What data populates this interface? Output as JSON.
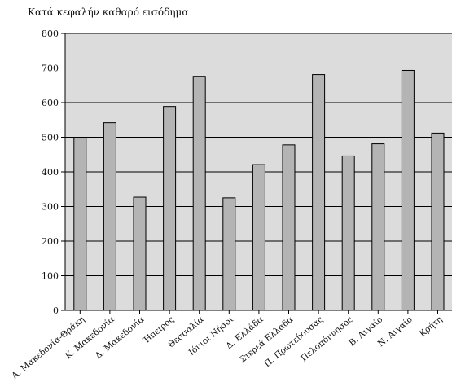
{
  "chart_data": {
    "type": "bar",
    "title": "Κατά κεφαλήν καθαρό εισόδημα",
    "xlabel": "",
    "ylabel": "",
    "ylim": [
      0,
      800
    ],
    "yticks": [
      0,
      100,
      200,
      300,
      400,
      500,
      600,
      700,
      800
    ],
    "grid": true,
    "categories": [
      "Α. Μακεδονία-Θράκη",
      "Κ. Μακεδονία",
      "Δ. Μακεδονία",
      "Ήπειρος",
      "Θεσσαλία",
      "Ιόνιοι Νήσοι",
      "Δ. Ελλάδα",
      "Στερεά Ελλάδα",
      "Π. Πρωτεύουσας",
      "Πελοπόννησος",
      "Β. Αιγαίο",
      "Ν. Αιγαίο",
      "Κρήτη"
    ],
    "values": [
      500,
      542,
      327,
      589,
      676,
      325,
      421,
      478,
      681,
      446,
      481,
      693,
      512
    ],
    "colors": {
      "plot_background": "#dcdcdc",
      "bar_fill": "#b4b4b4",
      "bar_stroke": "#000000",
      "gridline": "#000000",
      "axis": "#000000"
    }
  }
}
